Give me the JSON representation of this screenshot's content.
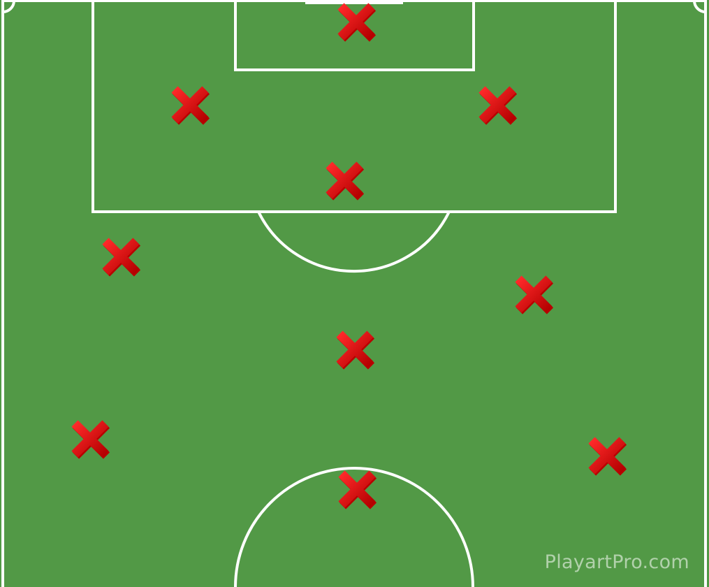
{
  "diagram": {
    "colors": {
      "pitch": "#529946",
      "lines": "#ffffff",
      "marker_dark": "#b80000",
      "marker_light": "#ff1a1a"
    },
    "players": [
      {
        "icon": "x-marker-icon",
        "role": "goalkeeper"
      },
      {
        "icon": "x-marker-icon",
        "role": "defender"
      },
      {
        "icon": "x-marker-icon",
        "role": "defender"
      },
      {
        "icon": "x-marker-icon",
        "role": "defender"
      },
      {
        "icon": "x-marker-icon",
        "role": "wide-left"
      },
      {
        "icon": "x-marker-icon",
        "role": "wide-right"
      },
      {
        "icon": "x-marker-icon",
        "role": "midfielder"
      },
      {
        "icon": "x-marker-icon",
        "role": "wide-left"
      },
      {
        "icon": "x-marker-icon",
        "role": "wide-right"
      },
      {
        "icon": "x-marker-icon",
        "role": "forward"
      }
    ]
  },
  "watermark": {
    "text": "PlayartPro.com"
  }
}
